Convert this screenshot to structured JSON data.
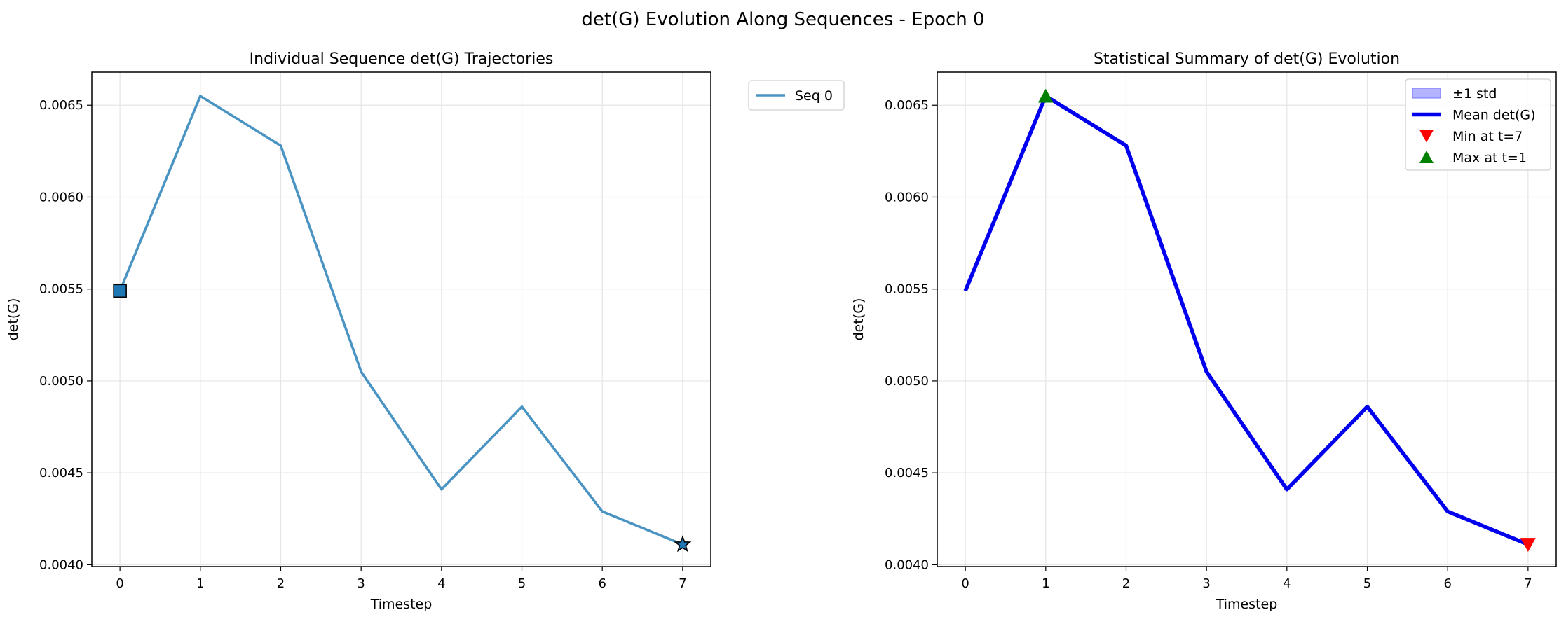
{
  "suptitle": "det(G) Evolution Along Sequences - Epoch 0",
  "colors": {
    "seq_line": "#4a94c4",
    "square_marker": "#1f77b4",
    "mean_line": "#0000ee",
    "std_fill": "#b3b3ff",
    "min_marker": "#ff0000",
    "max_marker": "#008000",
    "grid": "#e5e5e5"
  },
  "chart_data": [
    {
      "type": "line",
      "title": "Individual Sequence det(G) Trajectories",
      "xlabel": "Timestep",
      "ylabel": "det(G)",
      "x": [
        0,
        1,
        2,
        3,
        4,
        5,
        6,
        7
      ],
      "xlim": [
        -0.35,
        7.35
      ],
      "ylim": [
        0.00399,
        0.00668
      ],
      "xticks": [
        "0",
        "1",
        "2",
        "3",
        "4",
        "5",
        "6",
        "7"
      ],
      "yticks": [
        "0.0040",
        "0.0045",
        "0.0050",
        "0.0055",
        "0.0060",
        "0.0065"
      ],
      "ytick_values": [
        0.004,
        0.0045,
        0.005,
        0.0055,
        0.006,
        0.0065
      ],
      "grid": true,
      "legend_position": "outside-upper-right",
      "series": [
        {
          "name": "Seq 0",
          "values": [
            0.00549,
            0.00655,
            0.00628,
            0.00505,
            0.00441,
            0.00486,
            0.00429,
            0.00411
          ],
          "start_marker": "square",
          "end_marker": "star"
        }
      ]
    },
    {
      "type": "line",
      "title": "Statistical Summary of det(G) Evolution",
      "xlabel": "Timestep",
      "ylabel": "det(G)",
      "x": [
        0,
        1,
        2,
        3,
        4,
        5,
        6,
        7
      ],
      "xlim": [
        -0.35,
        7.35
      ],
      "ylim": [
        0.00399,
        0.00668
      ],
      "xticks": [
        "0",
        "1",
        "2",
        "3",
        "4",
        "5",
        "6",
        "7"
      ],
      "yticks": [
        "0.0040",
        "0.0045",
        "0.0050",
        "0.0055",
        "0.0060",
        "0.0065"
      ],
      "ytick_values": [
        0.004,
        0.0045,
        0.005,
        0.0055,
        0.006,
        0.0065
      ],
      "grid": true,
      "legend_position": "upper-right",
      "series": [
        {
          "name": "±1 std",
          "kind": "band",
          "values": [
            0.00549,
            0.00655,
            0.00628,
            0.00505,
            0.00441,
            0.00486,
            0.00429,
            0.00411
          ],
          "std": [
            0,
            0,
            0,
            0,
            0,
            0,
            0,
            0
          ]
        },
        {
          "name": "Mean det(G)",
          "kind": "line",
          "values": [
            0.00549,
            0.00655,
            0.00628,
            0.00505,
            0.00441,
            0.00486,
            0.00429,
            0.00411
          ]
        },
        {
          "name": "Min at t=7",
          "kind": "marker",
          "x": 7,
          "y": 0.00411,
          "marker": "triangle-down"
        },
        {
          "name": "Max at t=1",
          "kind": "marker",
          "x": 1,
          "y": 0.00655,
          "marker": "triangle-up"
        }
      ]
    }
  ]
}
